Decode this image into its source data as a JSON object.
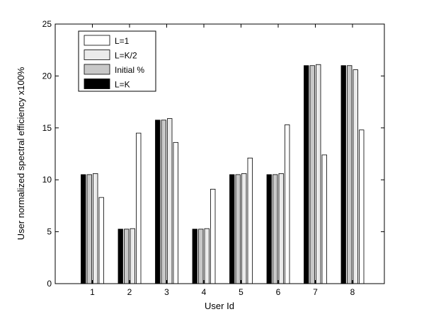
{
  "chart_data": {
    "type": "bar",
    "title": "",
    "xlabel": "User Id",
    "ylabel": "User normalized spectral efficiency x100%",
    "categories": [
      "1",
      "2",
      "3",
      "4",
      "5",
      "6",
      "7",
      "8"
    ],
    "ylim": [
      0,
      25
    ],
    "yticks": [
      0,
      5,
      10,
      15,
      20,
      25
    ],
    "grid": false,
    "legend_position": "top-left",
    "series": [
      {
        "name": "L=K",
        "color": "#000000",
        "values": [
          10.5,
          5.25,
          15.75,
          5.25,
          10.5,
          10.5,
          21.0,
          21.0
        ]
      },
      {
        "name": "Initial %",
        "color": "#c8c8c8",
        "values": [
          10.5,
          5.25,
          15.75,
          5.25,
          10.5,
          10.5,
          21.0,
          21.0
        ]
      },
      {
        "name": "L=K/2",
        "color": "#ebebeb",
        "values": [
          10.6,
          5.3,
          15.9,
          5.3,
          10.6,
          10.6,
          21.1,
          20.6
        ]
      },
      {
        "name": "L=1",
        "color": "#ffffff",
        "values": [
          8.3,
          14.5,
          13.6,
          9.1,
          12.1,
          15.3,
          12.4,
          14.8
        ]
      }
    ],
    "legend_order": [
      "L=1",
      "L=K/2",
      "Initial %",
      "L=K"
    ]
  }
}
